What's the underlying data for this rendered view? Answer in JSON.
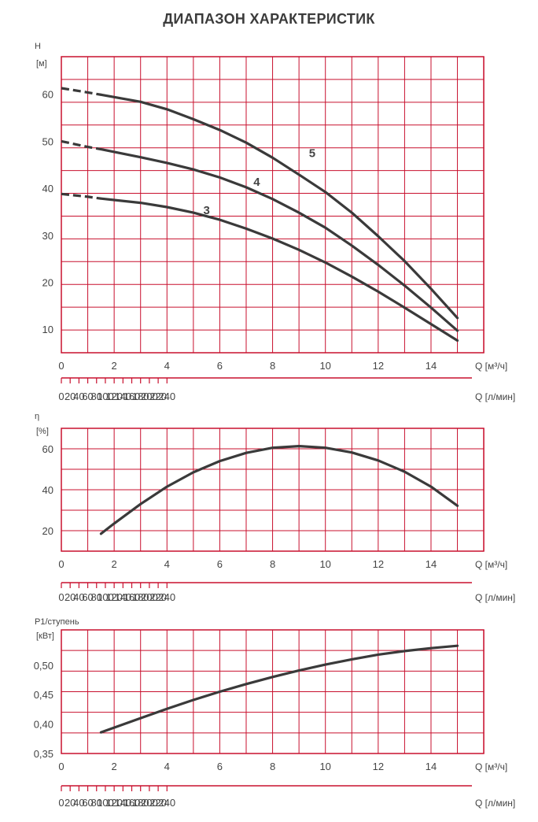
{
  "title": "ДИАПАЗОН ХАРАКТЕРИСТИК",
  "colors": {
    "grid": "#c8102e",
    "curve": "#3a3a3a",
    "text": "#444444"
  },
  "chart_data": [
    {
      "id": "head",
      "type": "line",
      "ylabel_lines": [
        "H",
        "[м]"
      ],
      "xlabel": "Q [м³/ч]",
      "xlim": [
        0,
        16
      ],
      "x_ticks": [
        0,
        2,
        4,
        6,
        8,
        10,
        12,
        14
      ],
      "x_tick_labels": [
        "0",
        "2",
        "4",
        "6",
        "8",
        "10",
        "12",
        "14"
      ],
      "ylim": [
        5,
        68
      ],
      "y_ticks": [
        10,
        20,
        30,
        40,
        50,
        60
      ],
      "y_tick_labels": [
        "10",
        "20",
        "30",
        "40",
        "50",
        "60"
      ],
      "series": [
        {
          "name": "5",
          "label": "5",
          "label_at": [
            9.5,
            47.5
          ],
          "dashed": [
            [
              0,
              61.3
            ],
            [
              1,
              60.4
            ],
            [
              1.5,
              59.9
            ]
          ],
          "points": [
            [
              1.5,
              59.9
            ],
            [
              3,
              58.4
            ],
            [
              4,
              56.8
            ],
            [
              5,
              54.7
            ],
            [
              6,
              52.4
            ],
            [
              7,
              49.7
            ],
            [
              8,
              46.5
            ],
            [
              9,
              42.9
            ],
            [
              10,
              39.2
            ],
            [
              11,
              34.8
            ],
            [
              12,
              29.8
            ],
            [
              13,
              24.5
            ],
            [
              14,
              18.6
            ],
            [
              15,
              12.4
            ]
          ]
        },
        {
          "name": "4",
          "label": "4",
          "label_at": [
            7.4,
            41.4
          ],
          "dashed": [
            [
              0,
              50.0
            ],
            [
              1,
              48.8
            ],
            [
              1.5,
              48.3
            ]
          ],
          "points": [
            [
              1.5,
              48.3
            ],
            [
              3,
              46.6
            ],
            [
              4,
              45.4
            ],
            [
              5,
              44.0
            ],
            [
              6,
              42.3
            ],
            [
              7,
              40.2
            ],
            [
              8,
              37.7
            ],
            [
              9,
              34.8
            ],
            [
              10,
              31.6
            ],
            [
              11,
              27.8
            ],
            [
              12,
              23.7
            ],
            [
              13,
              19.3
            ],
            [
              14,
              14.6
            ],
            [
              15,
              9.7
            ]
          ]
        },
        {
          "name": "3",
          "label": "3",
          "label_at": [
            5.5,
            35.3
          ],
          "dashed": [
            [
              0,
              38.8
            ],
            [
              1,
              38.2
            ],
            [
              1.5,
              37.8
            ]
          ],
          "points": [
            [
              1.5,
              37.8
            ],
            [
              3,
              36.9
            ],
            [
              4,
              36.0
            ],
            [
              5,
              34.8
            ],
            [
              6,
              33.3
            ],
            [
              7,
              31.4
            ],
            [
              8,
              29.3
            ],
            [
              9,
              26.9
            ],
            [
              10,
              24.2
            ],
            [
              11,
              21.2
            ],
            [
              12,
              18.0
            ],
            [
              13,
              14.6
            ],
            [
              14,
              11.1
            ],
            [
              15,
              7.6
            ]
          ]
        }
      ]
    },
    {
      "id": "efficiency",
      "type": "line",
      "ylabel_lines": [
        "η",
        "[%]"
      ],
      "xlabel": "Q [м³/ч]",
      "xlim": [
        0,
        16
      ],
      "x_ticks": [
        0,
        2,
        4,
        6,
        8,
        10,
        12,
        14
      ],
      "x_tick_labels": [
        "0",
        "2",
        "4",
        "6",
        "8",
        "10",
        "12",
        "14"
      ],
      "ylim": [
        10,
        70
      ],
      "y_ticks": [
        20,
        40,
        60
      ],
      "y_tick_labels": [
        "20",
        "40",
        "60"
      ],
      "series": [
        {
          "name": "η",
          "points": [
            [
              1.5,
              18.5
            ],
            [
              2,
              23.5
            ],
            [
              3,
              33
            ],
            [
              4,
              41.5
            ],
            [
              5,
              48.5
            ],
            [
              6,
              54
            ],
            [
              7,
              58
            ],
            [
              8,
              60.5
            ],
            [
              9,
              61.3
            ],
            [
              10,
              60.5
            ],
            [
              11,
              58.2
            ],
            [
              12,
              54.3
            ],
            [
              13,
              48.8
            ],
            [
              14,
              41.5
            ],
            [
              15,
              32.2
            ]
          ]
        }
      ]
    },
    {
      "id": "power",
      "type": "line",
      "ylabel_lines": [
        "P1/ступень",
        "[кВт]"
      ],
      "xlabel": "Q [м³/ч]",
      "xlim": [
        0,
        16
      ],
      "x_ticks": [
        0,
        2,
        4,
        6,
        8,
        10,
        12,
        14
      ],
      "x_tick_labels": [
        "0",
        "2",
        "4",
        "6",
        "8",
        "10",
        "12",
        "14"
      ],
      "ylim": [
        0.35,
        0.56
      ],
      "y_ticks": [
        0.35,
        0.4,
        0.45,
        0.5
      ],
      "y_tick_labels": [
        "0,35",
        "0,40",
        "0,45",
        "0,50"
      ],
      "series": [
        {
          "name": "P1",
          "points": [
            [
              1.5,
              0.386
            ],
            [
              3,
              0.41
            ],
            [
              4,
              0.426
            ],
            [
              5,
              0.441
            ],
            [
              6,
              0.455
            ],
            [
              7,
              0.468
            ],
            [
              8,
              0.48
            ],
            [
              9,
              0.491
            ],
            [
              10,
              0.501
            ],
            [
              11,
              0.51
            ],
            [
              12,
              0.518
            ],
            [
              13,
              0.524
            ],
            [
              14,
              0.529
            ],
            [
              15,
              0.533
            ]
          ]
        }
      ]
    }
  ],
  "secondary_axis": {
    "xlabel": "Q [л/мин]",
    "ticks": [
      0,
      20,
      40,
      60,
      80,
      100,
      120,
      140,
      160,
      180,
      200,
      220,
      240
    ],
    "tick_labels": [
      "0",
      "20",
      "40",
      "60",
      "80",
      "100",
      "120",
      "140",
      "160",
      "180",
      "200",
      "220",
      "240"
    ]
  }
}
